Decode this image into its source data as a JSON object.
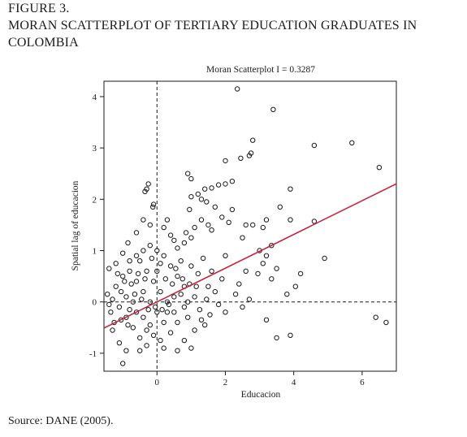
{
  "figure": {
    "label": "FIGURE 3.",
    "title": "MORAN SCATTERPLOT OF TERTIARY EDUCATION GRADUATES IN COLOMBIA",
    "source": "Source: DANE (2005)."
  },
  "colors": {
    "points": "#1a1a1a",
    "regression_line": "#c41e3a",
    "axes": "#1a1a1a"
  },
  "chart_data": {
    "type": "scatter",
    "title": "Moran Scatterplot I = 0.3287",
    "xlabel": "Educacion",
    "ylabel": "Spatial lag of educacion",
    "xlim": [
      -1.55,
      7.0
    ],
    "ylim": [
      -1.35,
      4.3
    ],
    "xticks": [
      0,
      2,
      4,
      6
    ],
    "yticks": [
      -1,
      0,
      1,
      2,
      3,
      4
    ],
    "grid": false,
    "reference_lines": {
      "x": 0,
      "y": 0,
      "style": "dashed"
    },
    "regression": {
      "slope": 0.3287,
      "intercept": 0.0,
      "x_range": [
        -1.55,
        7.0
      ]
    },
    "points": [
      [
        2.35,
        4.15
      ],
      [
        3.4,
        3.75
      ],
      [
        2.8,
        3.15
      ],
      [
        2.7,
        2.85
      ],
      [
        2.75,
        2.9
      ],
      [
        2.45,
        2.8
      ],
      [
        2.0,
        2.75
      ],
      [
        4.6,
        3.05
      ],
      [
        5.7,
        3.1
      ],
      [
        6.5,
        2.62
      ],
      [
        0.9,
        2.5
      ],
      [
        1.0,
        2.4
      ],
      [
        2.2,
        2.35
      ],
      [
        2.0,
        2.3
      ],
      [
        1.8,
        2.28
      ],
      [
        1.6,
        2.22
      ],
      [
        1.4,
        2.2
      ],
      [
        3.9,
        2.2
      ],
      [
        1.2,
        2.1
      ],
      [
        1.0,
        2.05
      ],
      [
        1.3,
        2.0
      ],
      [
        -0.25,
        2.3
      ],
      [
        -0.3,
        2.2
      ],
      [
        -0.35,
        2.15
      ],
      [
        -0.1,
        1.9
      ],
      [
        -0.12,
        1.85
      ],
      [
        1.45,
        1.95
      ],
      [
        1.7,
        1.85
      ],
      [
        0.95,
        1.8
      ],
      [
        2.2,
        1.8
      ],
      [
        3.6,
        1.85
      ],
      [
        3.2,
        1.6
      ],
      [
        3.9,
        1.6
      ],
      [
        4.6,
        1.57
      ],
      [
        2.1,
        1.55
      ],
      [
        2.6,
        1.5
      ],
      [
        2.8,
        1.5
      ],
      [
        3.1,
        1.45
      ],
      [
        1.3,
        1.6
      ],
      [
        1.5,
        1.5
      ],
      [
        1.9,
        1.65
      ],
      [
        1.6,
        1.4
      ],
      [
        1.1,
        1.45
      ],
      [
        0.85,
        1.35
      ],
      [
        1.0,
        1.25
      ],
      [
        2.5,
        1.25
      ],
      [
        3.35,
        1.1
      ],
      [
        3.0,
        1.0
      ],
      [
        3.2,
        0.9
      ],
      [
        3.1,
        0.75
      ],
      [
        3.5,
        0.65
      ],
      [
        2.95,
        0.55
      ],
      [
        3.35,
        0.45
      ],
      [
        4.2,
        0.55
      ],
      [
        4.9,
        0.85
      ],
      [
        4.05,
        0.3
      ],
      [
        3.8,
        0.15
      ],
      [
        2.7,
        0.05
      ],
      [
        3.2,
        -0.35
      ],
      [
        3.5,
        -0.7
      ],
      [
        3.9,
        -0.65
      ],
      [
        6.4,
        -0.3
      ],
      [
        6.7,
        -0.4
      ],
      [
        2.3,
        0.15
      ],
      [
        2.5,
        -0.1
      ],
      [
        2.4,
        0.35
      ],
      [
        2.6,
        0.6
      ],
      [
        2.0,
        0.9
      ],
      [
        1.9,
        0.45
      ],
      [
        1.7,
        0.2
      ],
      [
        1.8,
        -0.05
      ],
      [
        1.5,
        0.3
      ],
      [
        1.55,
        -0.25
      ],
      [
        1.3,
        -0.35
      ],
      [
        1.1,
        -0.55
      ],
      [
        1.4,
        -0.45
      ],
      [
        2.0,
        -0.2
      ],
      [
        1.0,
        -0.9
      ],
      [
        0.9,
        -0.3
      ],
      [
        0.8,
        0.3
      ],
      [
        0.7,
        0.8
      ],
      [
        0.8,
        1.15
      ],
      [
        0.6,
        1.05
      ],
      [
        0.5,
        1.2
      ],
      [
        0.4,
        1.3
      ],
      [
        0.3,
        1.6
      ],
      [
        0.2,
        1.45
      ],
      [
        -0.2,
        1.5
      ],
      [
        -0.4,
        1.6
      ],
      [
        -0.6,
        1.35
      ],
      [
        -0.85,
        1.15
      ],
      [
        -1.0,
        0.95
      ],
      [
        -1.2,
        0.75
      ],
      [
        -1.4,
        0.65
      ],
      [
        -1.45,
        0.15
      ],
      [
        -1.35,
        -0.2
      ],
      [
        -1.3,
        -0.55
      ],
      [
        -1.1,
        -0.8
      ],
      [
        -1.0,
        -1.2
      ],
      [
        -0.9,
        -0.95
      ],
      [
        -0.5,
        -0.95
      ],
      [
        -0.3,
        -0.85
      ],
      [
        0.2,
        -0.9
      ],
      [
        0.6,
        -0.95
      ],
      [
        0.8,
        -0.75
      ],
      [
        0.4,
        -0.6
      ],
      [
        0.2,
        -0.4
      ],
      [
        0.0,
        -0.2
      ],
      [
        -0.2,
        0.0
      ],
      [
        -0.4,
        0.2
      ],
      [
        -0.6,
        0.4
      ],
      [
        -0.8,
        0.6
      ],
      [
        -0.5,
        0.8
      ],
      [
        -0.3,
        0.6
      ],
      [
        -0.1,
        0.4
      ],
      [
        0.1,
        0.2
      ],
      [
        0.3,
        0.0
      ],
      [
        0.5,
        -0.2
      ],
      [
        0.6,
        0.5
      ],
      [
        0.4,
        0.7
      ],
      [
        0.2,
        0.9
      ],
      [
        0.0,
        1.0
      ],
      [
        -0.2,
        1.1
      ],
      [
        -0.4,
        1.0
      ],
      [
        -0.6,
        0.9
      ],
      [
        -0.8,
        0.8
      ],
      [
        -1.0,
        0.5
      ],
      [
        -1.2,
        0.3
      ],
      [
        -1.3,
        0.05
      ],
      [
        -1.1,
        -0.1
      ],
      [
        -0.9,
        -0.3
      ],
      [
        -0.7,
        -0.5
      ],
      [
        -0.5,
        -0.7
      ],
      [
        -0.3,
        -0.55
      ],
      [
        -0.1,
        -0.65
      ],
      [
        0.1,
        -0.75
      ],
      [
        0.3,
        -0.2
      ],
      [
        0.5,
        0.1
      ],
      [
        0.7,
        0.15
      ],
      [
        0.9,
        0.0
      ],
      [
        1.1,
        0.1
      ],
      [
        1.2,
        0.55
      ],
      [
        1.0,
        0.7
      ],
      [
        0.8,
        -0.1
      ],
      [
        0.6,
        -0.4
      ],
      [
        -0.7,
        0.0
      ],
      [
        -0.9,
        0.1
      ],
      [
        -1.05,
        0.2
      ],
      [
        -0.8,
        -0.15
      ],
      [
        -0.6,
        -0.2
      ],
      [
        -0.4,
        -0.3
      ],
      [
        -0.2,
        -0.45
      ],
      [
        0.0,
        0.6
      ],
      [
        0.1,
        0.75
      ],
      [
        -0.15,
        0.85
      ],
      [
        -0.35,
        0.45
      ],
      [
        -0.55,
        0.55
      ],
      [
        -0.75,
        0.35
      ],
      [
        -0.95,
        0.4
      ],
      [
        -1.15,
        0.55
      ],
      [
        0.25,
        0.45
      ],
      [
        0.45,
        0.35
      ],
      [
        0.35,
        -0.05
      ],
      [
        0.15,
        -0.15
      ],
      [
        -0.05,
        -0.1
      ],
      [
        -0.25,
        -0.15
      ],
      [
        -0.45,
        0.05
      ],
      [
        -0.65,
        0.15
      ],
      [
        -0.85,
        -0.45
      ],
      [
        -1.05,
        -0.35
      ],
      [
        -1.25,
        -0.4
      ],
      [
        -1.4,
        -0.05
      ],
      [
        0.55,
        0.65
      ],
      [
        0.75,
        0.45
      ],
      [
        0.95,
        0.35
      ],
      [
        1.15,
        0.3
      ],
      [
        1.25,
        -0.15
      ],
      [
        1.45,
        0.05
      ],
      [
        1.6,
        0.6
      ],
      [
        1.35,
        0.85
      ]
    ]
  }
}
